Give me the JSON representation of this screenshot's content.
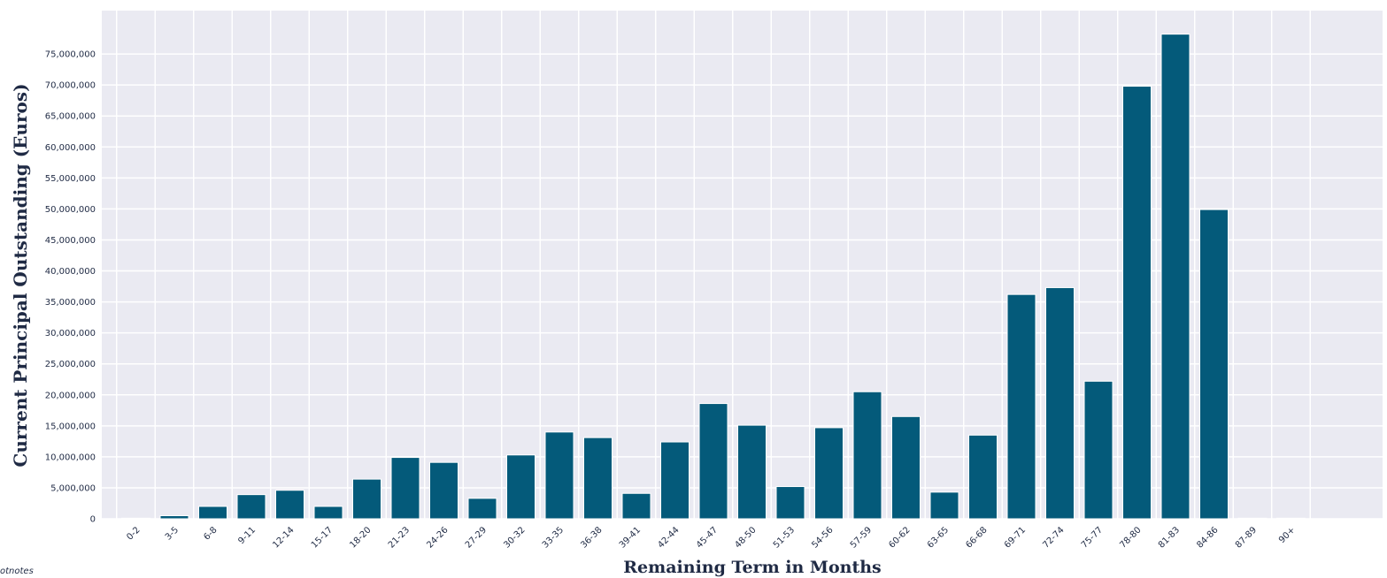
{
  "chart_data": {
    "type": "bar",
    "xlabel": "Remaining Term in Months",
    "ylabel": "Current Principal Outstanding (Euros)",
    "ylim": [
      0,
      82000000
    ],
    "yticks": [
      "0",
      "5,000,000",
      "10,000,000",
      "15,000,000",
      "20,000,000",
      "25,000,000",
      "30,000,000",
      "35,000,000",
      "40,000,000",
      "45,000,000",
      "50,000,000",
      "55,000,000",
      "60,000,000",
      "65,000,000",
      "70,000,000",
      "75,000,000"
    ],
    "grid": true,
    "legend": "none",
    "colors": {
      "bar": "#045a7a",
      "plot_bg": "#eaeaf2",
      "grid": "#ffffff",
      "text": "#1f2a44"
    },
    "categories": [
      "0-2",
      "3-5",
      "6-8",
      "9-11",
      "12-14",
      "15-17",
      "18-20",
      "21-23",
      "24-26",
      "27-29",
      "30-32",
      "33-35",
      "36-38",
      "39-41",
      "42-44",
      "45-47",
      "48-50",
      "51-53",
      "54-56",
      "57-59",
      "60-62",
      "63-65",
      "66-68",
      "69-71",
      "72-74",
      "75-77",
      "78-80",
      "81-83",
      "84-86",
      "87-89",
      "90+"
    ],
    "values": [
      100000,
      500000,
      2000000,
      3900000,
      4600000,
      2000000,
      6400000,
      9900000,
      9100000,
      3300000,
      10300000,
      14000000,
      13100000,
      4100000,
      12400000,
      18600000,
      15100000,
      5200000,
      14700000,
      20500000,
      16500000,
      4300000,
      13500000,
      36200000,
      37300000,
      22200000,
      69800000,
      78200000,
      49900000,
      100000,
      100000
    ]
  },
  "footnote": "otnotes"
}
